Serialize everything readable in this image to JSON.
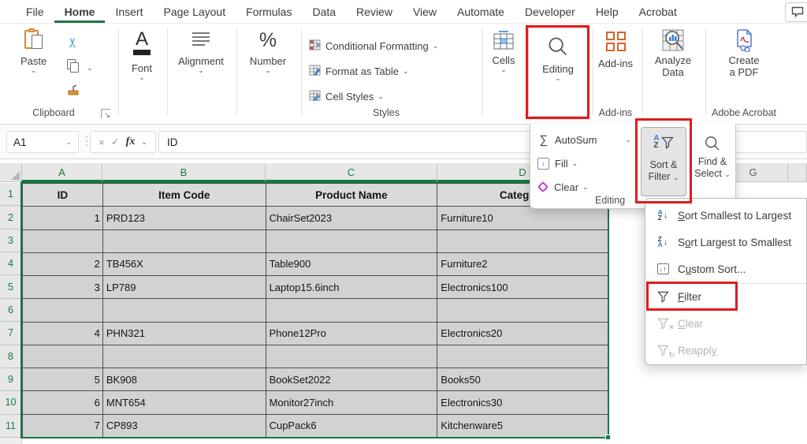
{
  "menu_bar": {
    "tabs": [
      {
        "label": "File"
      },
      {
        "label": "Home",
        "active": true
      },
      {
        "label": "Insert"
      },
      {
        "label": "Page Layout"
      },
      {
        "label": "Formulas"
      },
      {
        "label": "Data"
      },
      {
        "label": "Review"
      },
      {
        "label": "View"
      },
      {
        "label": "Automate"
      },
      {
        "label": "Developer"
      },
      {
        "label": "Help"
      },
      {
        "label": "Acrobat"
      }
    ]
  },
  "ribbon": {
    "paste": {
      "label": "Paste"
    },
    "clipboard_group_label": "Clipboard",
    "font": {
      "label": "Font"
    },
    "alignment": {
      "label": "Alignment"
    },
    "number": {
      "label": "Number"
    },
    "styles": {
      "items": [
        {
          "label": "Conditional Formatting",
          "icon": "conditional-formatting"
        },
        {
          "label": "Format as Table",
          "icon": "format-as-table"
        },
        {
          "label": "Cell Styles",
          "icon": "cell-styles"
        }
      ],
      "group_label": "Styles"
    },
    "cells": {
      "label": "Cells"
    },
    "editing": {
      "label": "Editing"
    },
    "addins": {
      "label": "Add-ins",
      "group_label": "Add-ins"
    },
    "analyze_data": {
      "line1": "Analyze",
      "line2": "Data"
    },
    "create_pdf": {
      "line1": "Create",
      "line2": "a PDF",
      "group_label": "Adobe Acrobat"
    }
  },
  "formula_bar": {
    "name_box": "A1",
    "fx_label": "fx",
    "value": "ID"
  },
  "editing_flyout": {
    "autosum_label": "AutoSum",
    "fill_label": "Fill",
    "clear_label": "Clear",
    "group_label": "Editing",
    "sort_filter": {
      "line1": "Sort &",
      "line2": "Filter"
    },
    "find_select": {
      "line1": "Find &",
      "line2": "Select"
    }
  },
  "sort_filter_menu": {
    "items": [
      {
        "icon": "sort-az",
        "pre": "",
        "key": "S",
        "post": "ort Smallest to Largest",
        "disabled": false
      },
      {
        "icon": "sort-za",
        "pre": "S",
        "key": "o",
        "post": "rt Largest to Smallest",
        "disabled": false
      },
      {
        "icon": "custom-sort",
        "pre": "C",
        "key": "u",
        "post": "stom Sort...",
        "disabled": false
      },
      {
        "icon": "filter",
        "pre": "",
        "key": "F",
        "post": "ilter",
        "disabled": false
      },
      {
        "icon": "filter-clear",
        "pre": "",
        "key": "C",
        "post": "lear",
        "disabled": true
      },
      {
        "icon": "filter-reapply",
        "pre": "Reappl",
        "key": "y",
        "post": "",
        "disabled": true
      }
    ]
  },
  "sheet": {
    "column_headers": [
      {
        "label": "A",
        "selected": true
      },
      {
        "label": "B",
        "selected": true
      },
      {
        "label": "C",
        "selected": true
      },
      {
        "label": "D",
        "selected": true
      },
      {
        "label": "",
        "selected": false
      },
      {
        "label": "",
        "selected": false
      },
      {
        "label": "G",
        "selected": false
      },
      {
        "label": "",
        "selected": false
      }
    ],
    "row_headers": [
      "1",
      "2",
      "3",
      "4",
      "5",
      "6",
      "7",
      "8",
      "9",
      "10",
      "11"
    ],
    "header_row": [
      "ID",
      "Item Code",
      "Product Name",
      "Category"
    ],
    "data_rows": [
      [
        "1",
        "PRD123",
        "ChairSet2023",
        "Furniture10"
      ],
      [
        "",
        "",
        "",
        ""
      ],
      [
        "2",
        "TB456X",
        "Table900",
        "Furniture2"
      ],
      [
        "3",
        "LP789",
        "Laptop15.6inch",
        "Electronics100"
      ],
      [
        "",
        "",
        "",
        ""
      ],
      [
        "4",
        "PHN321",
        "Phone12Pro",
        "Electronics20"
      ],
      [
        "",
        "",
        "",
        ""
      ],
      [
        "5",
        "BK908",
        "BookSet2022",
        "Books50"
      ],
      [
        "6",
        "MNT654",
        "Monitor27inch",
        "Electronics30"
      ],
      [
        "7",
        "CP893",
        "CupPack6",
        "Kitchenware5"
      ]
    ]
  },
  "colors": {
    "excel_green": "#217346",
    "selection_green": "#107C41",
    "annotation_red": "#e01b1b",
    "accent_blue": "#2E7FD4"
  }
}
